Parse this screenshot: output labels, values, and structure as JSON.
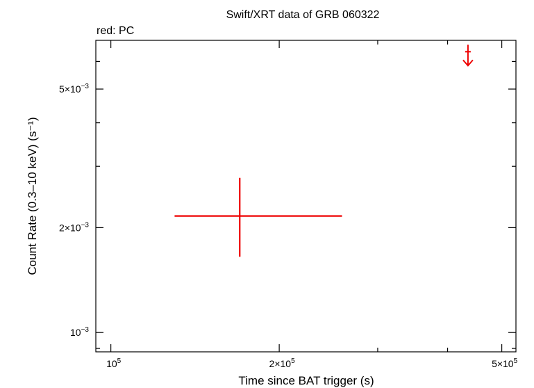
{
  "chart_data": {
    "type": "scatter",
    "title": "Swift/XRT data of GRB 060322",
    "subtitle": "red: PC",
    "xlabel": "Time since BAT trigger (s)",
    "ylabel": "Count Rate (0.3–10 keV) (s⁻¹)",
    "x_scale": "log",
    "y_scale": "log",
    "xlim": [
      94000,
      530000
    ],
    "ylim": [
      0.00088,
      0.0069
    ],
    "grid": false,
    "x_ticks": [
      {
        "value": 100000,
        "mantissa": "",
        "exponent": "5"
      },
      {
        "value": 200000,
        "mantissa": "2",
        "exponent": "5"
      },
      {
        "value": 500000,
        "mantissa": "5",
        "exponent": "5"
      }
    ],
    "y_ticks": [
      {
        "value": 0.001,
        "mantissa": "",
        "exponent": "−3"
      },
      {
        "value": 0.002,
        "mantissa": "2",
        "exponent": "−3"
      },
      {
        "value": 0.005,
        "mantissa": "5",
        "exponent": "−3"
      }
    ],
    "color": "#ee0000",
    "series": [
      {
        "points": [
          {
            "x": 170000,
            "x_lo": 130000,
            "x_hi": 259000,
            "y": 0.00216,
            "y_lo": 0.00165,
            "y_hi": 0.00278
          }
        ],
        "upper_limits": [
          {
            "x": 435000,
            "x_lo": 430000,
            "x_hi": 440000,
            "y": 0.0064
          }
        ]
      }
    ]
  }
}
